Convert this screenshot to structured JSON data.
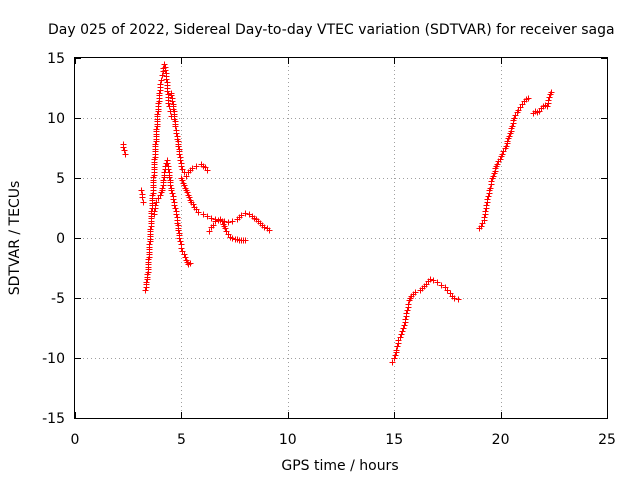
{
  "chart_data": {
    "type": "scatter",
    "title": "Day 025 of 2022, Sidereal Day-to-day VTEC variation (SDTVAR) for receiver saga",
    "xlabel": "GPS time / hours",
    "ylabel": "SDTVAR / TECUs",
    "xlim": [
      0,
      25
    ],
    "ylim": [
      -15,
      15
    ],
    "x_ticks": [
      0,
      5,
      10,
      15,
      20,
      25
    ],
    "y_ticks": [
      -15,
      -10,
      -5,
      0,
      5,
      10,
      15
    ],
    "x_tick_labels": [
      "0",
      "5",
      "10",
      "15",
      "20",
      "25"
    ],
    "y_tick_labels": [
      "-15",
      "-10",
      "-5",
      "0",
      "5",
      "10",
      "15"
    ],
    "grid": true,
    "marker": "plus",
    "series": [
      {
        "name": "SDTVAR",
        "color": "#ff0000",
        "tracks": [
          {
            "x": [
              2.25,
              2.3,
              2.35
            ],
            "y": [
              7.8,
              7.3,
              7.0
            ]
          },
          {
            "x": [
              3.1,
              3.15,
              3.2
            ],
            "y": [
              4.0,
              3.4,
              3.0
            ]
          },
          {
            "x": [
              3.3,
              3.4,
              3.5,
              3.6,
              3.7,
              3.8,
              3.9,
              4.0,
              4.05,
              4.1,
              4.15,
              4.2,
              4.25,
              4.3,
              4.35,
              4.4,
              4.45,
              4.5
            ],
            "y": [
              -4.3,
              -3.0,
              -0.5,
              2.5,
              5.5,
              8.5,
              11.0,
              12.8,
              13.2,
              13.6,
              14.2,
              14.5,
              14.0,
              13.0,
              12.0,
              11.0,
              10.6,
              10.2
            ]
          },
          {
            "x": [
              4.5,
              4.6,
              4.7,
              4.8,
              4.9,
              5.0,
              5.1,
              5.2,
              5.3,
              5.5,
              5.7,
              5.9,
              6.0,
              6.1,
              6.2
            ],
            "y": [
              12.1,
              11.2,
              9.3,
              8.5,
              7.0,
              6.0,
              5.5,
              5.2,
              5.5,
              5.8,
              6.0,
              6.2,
              6.0,
              5.9,
              5.7
            ]
          },
          {
            "x": [
              3.7,
              3.8,
              3.9,
              4.0,
              4.1,
              4.2,
              4.3,
              4.4,
              4.5,
              4.6,
              4.7,
              4.8,
              4.9,
              5.0,
              5.1,
              5.2,
              5.3,
              5.4
            ],
            "y": [
              2.0,
              3.0,
              3.3,
              3.6,
              4.2,
              5.5,
              6.5,
              5.5,
              4.2,
              3.5,
              2.5,
              1.5,
              0.0,
              -0.8,
              -1.3,
              -1.8,
              -2.2,
              -2.1
            ]
          },
          {
            "x": [
              5.0,
              5.2,
              5.4,
              5.6,
              5.8,
              6.0,
              6.2,
              6.4,
              6.6,
              6.8,
              7.0,
              7.2,
              7.4,
              7.6,
              7.8,
              8.0,
              8.2,
              8.4,
              8.6,
              8.8,
              9.0,
              9.1
            ],
            "y": [
              5.0,
              4.0,
              3.2,
              2.6,
              2.2,
              2.0,
              1.8,
              1.7,
              1.6,
              1.5,
              1.4,
              1.3,
              1.4,
              1.6,
              1.9,
              2.1,
              2.0,
              1.7,
              1.4,
              1.1,
              0.8,
              0.7
            ]
          },
          {
            "x": [
              6.3,
              6.4,
              6.5,
              6.6,
              6.7,
              6.8,
              6.9,
              7.0,
              7.1,
              7.2,
              7.3,
              7.4,
              7.5,
              7.6,
              7.7,
              7.8,
              7.9,
              8.0
            ],
            "y": [
              0.6,
              0.9,
              1.1,
              1.4,
              1.5,
              1.6,
              1.4,
              1.0,
              0.6,
              0.3,
              0.1,
              0.0,
              -0.1,
              -0.1,
              -0.2,
              -0.2,
              -0.2,
              -0.2
            ]
          },
          {
            "x": [
              14.9,
              15.0,
              15.1,
              15.2,
              15.3,
              15.4,
              15.5,
              15.6,
              15.7,
              15.8,
              16.0,
              16.2,
              16.4,
              16.6,
              16.7,
              16.8,
              17.0,
              17.2,
              17.4,
              17.6,
              17.8,
              18.0
            ],
            "y": [
              -10.3,
              -10.0,
              -9.3,
              -8.5,
              -8.0,
              -7.5,
              -7.0,
              -6.0,
              -5.2,
              -4.8,
              -4.5,
              -4.3,
              -4.0,
              -3.6,
              -3.4,
              -3.5,
              -3.7,
              -3.9,
              -4.1,
              -4.6,
              -5.0,
              -5.1
            ]
          },
          {
            "x": [
              19.0,
              19.2,
              19.3,
              19.4,
              19.5,
              19.6,
              19.8,
              20.0,
              20.2,
              20.4,
              20.6,
              20.8,
              21.0,
              21.2,
              21.3
            ],
            "y": [
              0.8,
              1.5,
              2.5,
              3.5,
              4.2,
              5.0,
              6.0,
              6.8,
              7.5,
              8.5,
              9.8,
              10.7,
              11.2,
              11.6,
              11.7
            ]
          },
          {
            "x": [
              21.5,
              21.6,
              21.7,
              21.8,
              21.9,
              22.0,
              22.1,
              22.2,
              22.3,
              22.35
            ],
            "y": [
              10.4,
              10.6,
              10.5,
              10.6,
              10.8,
              11.0,
              11.1,
              11.0,
              12.0,
              12.2
            ]
          }
        ]
      }
    ]
  }
}
